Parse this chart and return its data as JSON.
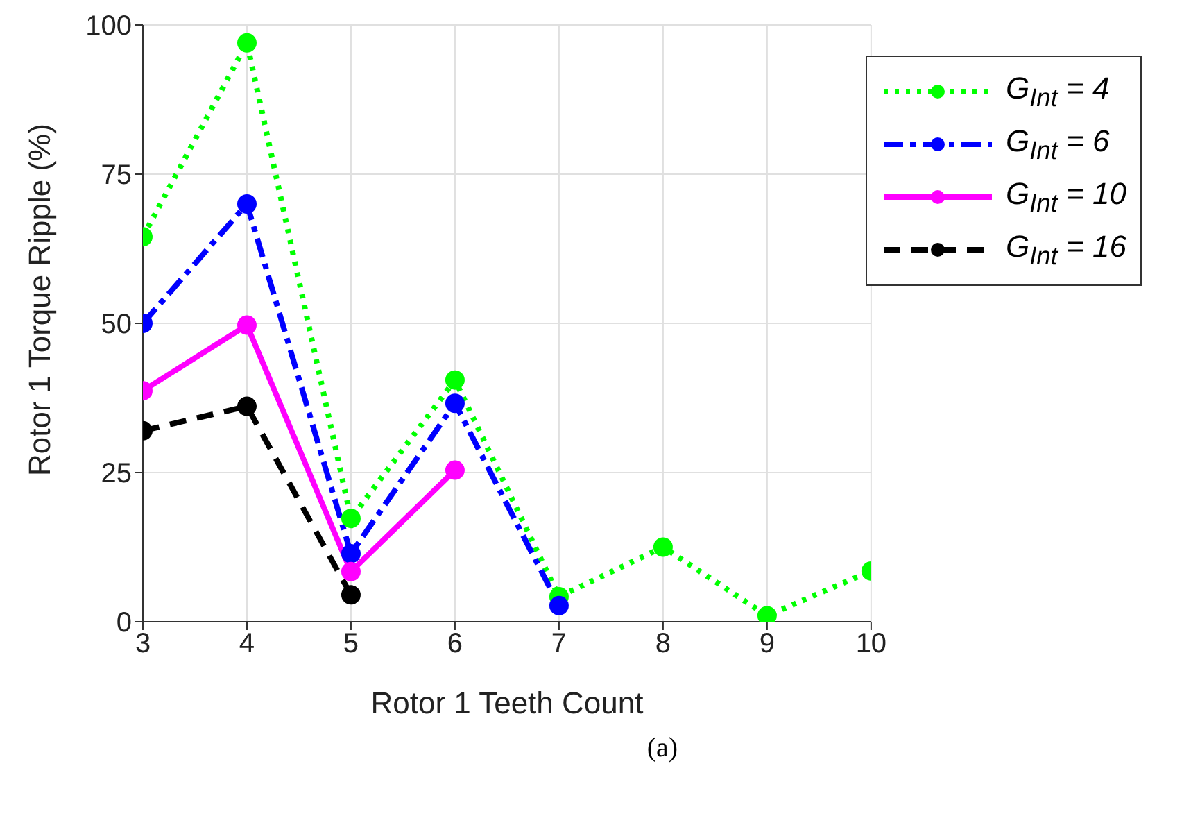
{
  "chart_data": {
    "type": "line",
    "xlabel": "Rotor 1 Teeth Count",
    "ylabel": "Rotor 1 Torque Ripple (%)",
    "x": [
      3,
      4,
      5,
      6,
      7,
      8,
      9,
      10
    ],
    "series": [
      {
        "name": "G$_{Int}$ = 4",
        "color": "#00ff00",
        "line_style": "dotted",
        "values": [
          64.5,
          97,
          17.3,
          40.5,
          4.2,
          12.5,
          1,
          8.5
        ]
      },
      {
        "name": "G$_{Int}$ = 6",
        "color": "#0000ff",
        "line_style": "dashdot",
        "values": [
          50,
          70,
          11.4,
          36.6,
          2.7,
          null,
          null,
          null
        ]
      },
      {
        "name": "G$_{Int}$ = 10",
        "color": "#ff00ff",
        "line_style": "solid",
        "values": [
          38.7,
          49.7,
          8.4,
          25.4,
          null,
          null,
          null,
          null
        ]
      },
      {
        "name": "G$_{Int}$ = 16",
        "color": "#000000",
        "line_style": "dashed",
        "values": [
          32,
          36.1,
          4.5,
          null,
          null,
          null,
          null,
          null
        ]
      }
    ],
    "xlim": [
      3,
      10
    ],
    "xticks": [
      3,
      4,
      5,
      6,
      7,
      8,
      9,
      10
    ],
    "ylim": [
      0,
      100
    ],
    "yticks": [
      0,
      25,
      50,
      75,
      100
    ],
    "grid": true,
    "legend": "top right",
    "marker": "circle",
    "annotations": [
      "(a)"
    ]
  }
}
